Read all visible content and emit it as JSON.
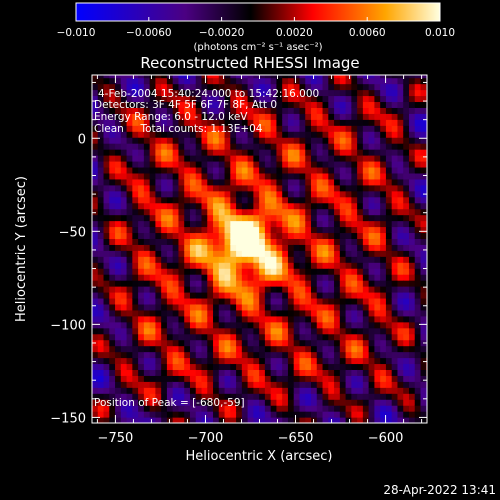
{
  "colors": {
    "background": "#000000",
    "text": "#ffffff",
    "colormap": [
      "#0000ff",
      "#4b0082",
      "#000000",
      "#ff0000",
      "#ffa500",
      "#ffffe0"
    ]
  },
  "chart_data": {
    "type": "heatmap",
    "title": "Reconstructed RHESSI Image",
    "xlabel": "Heliocentric X (arcsec)",
    "ylabel": "Heliocentric Y (arcsec)",
    "xlim": [
      -763,
      -577
    ],
    "ylim": [
      -153,
      34
    ],
    "xticks": [
      -750,
      -700,
      -650,
      -600
    ],
    "yticks": [
      -150,
      -100,
      -50,
      0
    ],
    "xtick_labels": [
      "−750",
      "−700",
      "−650",
      "−600"
    ],
    "ytick_labels": [
      "−150",
      "−100",
      "−50",
      "0"
    ],
    "info_lines": [
      "4-Feb-2004 15:40:24.000 to 15:42:16.000",
      "Detectors: 3F 4F 5F 6F 7F 8F, Att 0",
      "Energy Range: 6.0 - 12.0 keV",
      "Clean     Total counts: 1.13E+04"
    ],
    "peak_text": "Position of Peak = [-680,-59]",
    "peak": [
      -680,
      -59
    ],
    "colorbar": {
      "min": -0.01,
      "max": 0.01,
      "ticks": [
        -0.01,
        -0.006,
        -0.002,
        0.002,
        0.006,
        0.01
      ],
      "tick_labels": [
        "−0.010",
        "−0.0060",
        "−0.0020",
        "0.0020",
        "0.0060",
        "0.010"
      ],
      "units": "(photons cm⁻² s⁻¹ asec⁻²)"
    },
    "grid": false
  },
  "footer": {
    "timestamp": "28-Apr-2022 13:41"
  }
}
